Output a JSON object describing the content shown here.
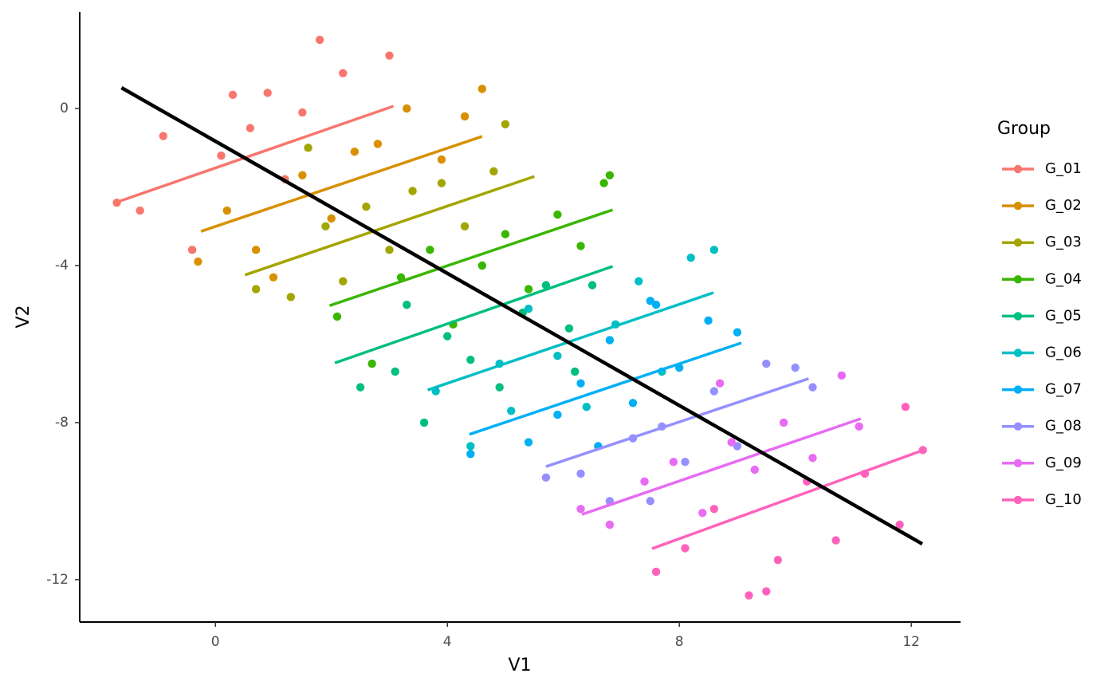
{
  "chart_data": {
    "type": "scatter",
    "xlabel": "V1",
    "ylabel": "V2",
    "legend_title": "Group",
    "legend": "right",
    "grid": false,
    "xlim": [
      -2.34,
      12.85
    ],
    "ylim": [
      -13.08,
      2.46
    ],
    "xticks": [
      0,
      4,
      8,
      12
    ],
    "yticks": [
      -12,
      -8,
      -4,
      0
    ],
    "overall_fit": {
      "color": "#000000",
      "x": [
        -1.62,
        12.19
      ],
      "y": [
        0.53,
        -11.09
      ]
    },
    "series": [
      {
        "name": "G_01",
        "color": "#F8766D",
        "x": [
          -1.7,
          -1.3,
          -0.9,
          -0.4,
          0.1,
          0.3,
          0.6,
          0.9,
          1.2,
          1.5,
          1.8,
          2.2,
          3.0
        ],
        "y": [
          -2.4,
          -2.6,
          -0.7,
          -3.6,
          -1.2,
          0.35,
          -0.5,
          0.4,
          -1.8,
          -0.1,
          1.75,
          0.9,
          1.35
        ],
        "fit": {
          "x": [
            -1.69,
            3.07
          ],
          "y": [
            -2.38,
            0.06
          ]
        }
      },
      {
        "name": "G_02",
        "color": "#D89000",
        "x": [
          -0.3,
          0.2,
          0.7,
          1.0,
          1.5,
          2.0,
          2.4,
          2.8,
          3.3,
          3.9,
          4.3,
          4.6
        ],
        "y": [
          -3.9,
          -2.6,
          -3.6,
          -4.3,
          -1.7,
          -2.8,
          -1.1,
          -0.9,
          0.0,
          -1.3,
          -0.2,
          0.5
        ],
        "fit": {
          "x": [
            -0.25,
            4.6
          ],
          "y": [
            -3.13,
            -0.71
          ]
        }
      },
      {
        "name": "G_03",
        "color": "#A3A500",
        "x": [
          0.7,
          1.3,
          1.6,
          1.9,
          2.2,
          2.6,
          3.0,
          3.4,
          3.9,
          4.3,
          4.8,
          5.0
        ],
        "y": [
          -4.6,
          -4.8,
          -1.0,
          -3.0,
          -4.4,
          -2.5,
          -3.6,
          -2.1,
          -1.9,
          -3.0,
          -1.6,
          -0.4
        ],
        "fit": {
          "x": [
            0.51,
            5.5
          ],
          "y": [
            -4.24,
            -1.73
          ]
        }
      },
      {
        "name": "G_04",
        "color": "#39B600",
        "x": [
          2.1,
          2.7,
          3.2,
          3.7,
          4.1,
          4.6,
          5.0,
          5.4,
          5.9,
          6.3,
          6.7,
          6.8
        ],
        "y": [
          -5.3,
          -6.5,
          -4.3,
          -3.6,
          -5.5,
          -4.0,
          -3.2,
          -4.6,
          -2.7,
          -3.5,
          -1.9,
          -1.7
        ],
        "fit": {
          "x": [
            1.97,
            6.85
          ],
          "y": [
            -5.02,
            -2.58
          ]
        }
      },
      {
        "name": "G_05",
        "color": "#00BF7D",
        "x": [
          2.5,
          3.1,
          3.3,
          3.6,
          4.0,
          4.4,
          4.9,
          5.3,
          5.7,
          6.1,
          6.2,
          6.5
        ],
        "y": [
          -7.1,
          -6.7,
          -5.0,
          -8.0,
          -5.8,
          -6.4,
          -7.1,
          -5.2,
          -4.5,
          -5.6,
          -6.7,
          -4.5
        ],
        "fit": {
          "x": [
            2.06,
            6.85
          ],
          "y": [
            -6.48,
            -4.02
          ]
        }
      },
      {
        "name": "G_06",
        "color": "#00BFC4",
        "x": [
          3.8,
          4.4,
          4.9,
          5.1,
          5.4,
          5.9,
          6.4,
          6.9,
          7.3,
          7.7,
          8.2,
          8.6
        ],
        "y": [
          -7.2,
          -8.6,
          -6.5,
          -7.7,
          -5.1,
          -6.3,
          -7.6,
          -5.5,
          -4.4,
          -6.7,
          -3.8,
          -3.6
        ],
        "fit": {
          "x": [
            3.66,
            8.59
          ],
          "y": [
            -7.17,
            -4.69
          ]
        }
      },
      {
        "name": "G_07",
        "color": "#00B0F6",
        "x": [
          4.4,
          5.4,
          5.9,
          6.3,
          6.6,
          6.8,
          7.2,
          7.5,
          7.6,
          8.0,
          8.5,
          9.0
        ],
        "y": [
          -8.8,
          -8.5,
          -7.8,
          -7.0,
          -8.6,
          -5.9,
          -7.5,
          -4.9,
          -5.0,
          -6.6,
          -5.4,
          -5.7
        ],
        "fit": {
          "x": [
            4.38,
            9.07
          ],
          "y": [
            -8.3,
            -5.97
          ]
        }
      },
      {
        "name": "G_08",
        "color": "#9590FF",
        "x": [
          5.7,
          6.3,
          6.8,
          7.2,
          7.5,
          7.7,
          8.1,
          8.6,
          9.0,
          9.5,
          10.0,
          10.3
        ],
        "y": [
          -9.4,
          -9.3,
          -10.0,
          -8.4,
          -10.0,
          -8.1,
          -9.0,
          -7.2,
          -8.6,
          -6.5,
          -6.6,
          -7.1
        ],
        "fit": {
          "x": [
            5.7,
            10.23
          ],
          "y": [
            -9.12,
            -6.88
          ]
        }
      },
      {
        "name": "G_09",
        "color": "#E76BF3",
        "x": [
          6.3,
          6.8,
          7.4,
          7.9,
          8.4,
          8.7,
          8.9,
          9.3,
          9.8,
          10.3,
          10.8,
          11.1
        ],
        "y": [
          -10.2,
          -10.6,
          -9.5,
          -9.0,
          -10.3,
          -7.0,
          -8.5,
          -9.2,
          -8.0,
          -8.9,
          -6.8,
          -8.1
        ],
        "fit": {
          "x": [
            6.32,
            11.13
          ],
          "y": [
            -10.34,
            -7.9
          ]
        }
      },
      {
        "name": "G_10",
        "color": "#FF62BC",
        "x": [
          7.6,
          8.1,
          8.6,
          9.2,
          9.5,
          9.7,
          10.2,
          10.7,
          11.2,
          11.8,
          11.9,
          12.2
        ],
        "y": [
          -11.8,
          -11.2,
          -10.2,
          -12.4,
          -12.3,
          -11.5,
          -9.5,
          -11.0,
          -9.3,
          -10.6,
          -7.6,
          -8.7
        ],
        "fit": {
          "x": [
            7.53,
            12.19
          ],
          "y": [
            -11.21,
            -8.71
          ]
        }
      }
    ]
  }
}
